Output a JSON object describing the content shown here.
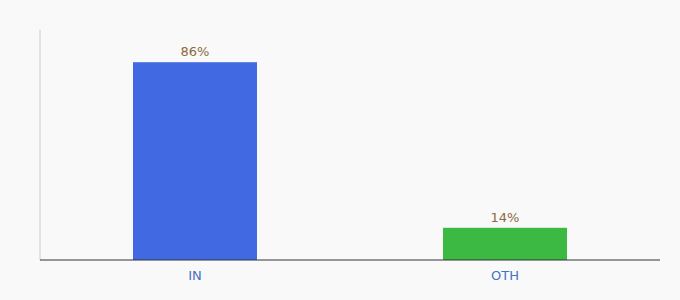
{
  "chart_data": {
    "type": "bar",
    "categories": [
      "IN",
      "OTH"
    ],
    "values": [
      86,
      14
    ],
    "value_labels": [
      "86%",
      "14%"
    ],
    "colors": [
      "#4169E1",
      "#3CB943"
    ],
    "ylim": [
      0,
      100
    ],
    "data_labels": true,
    "tick_labels": "x"
  }
}
